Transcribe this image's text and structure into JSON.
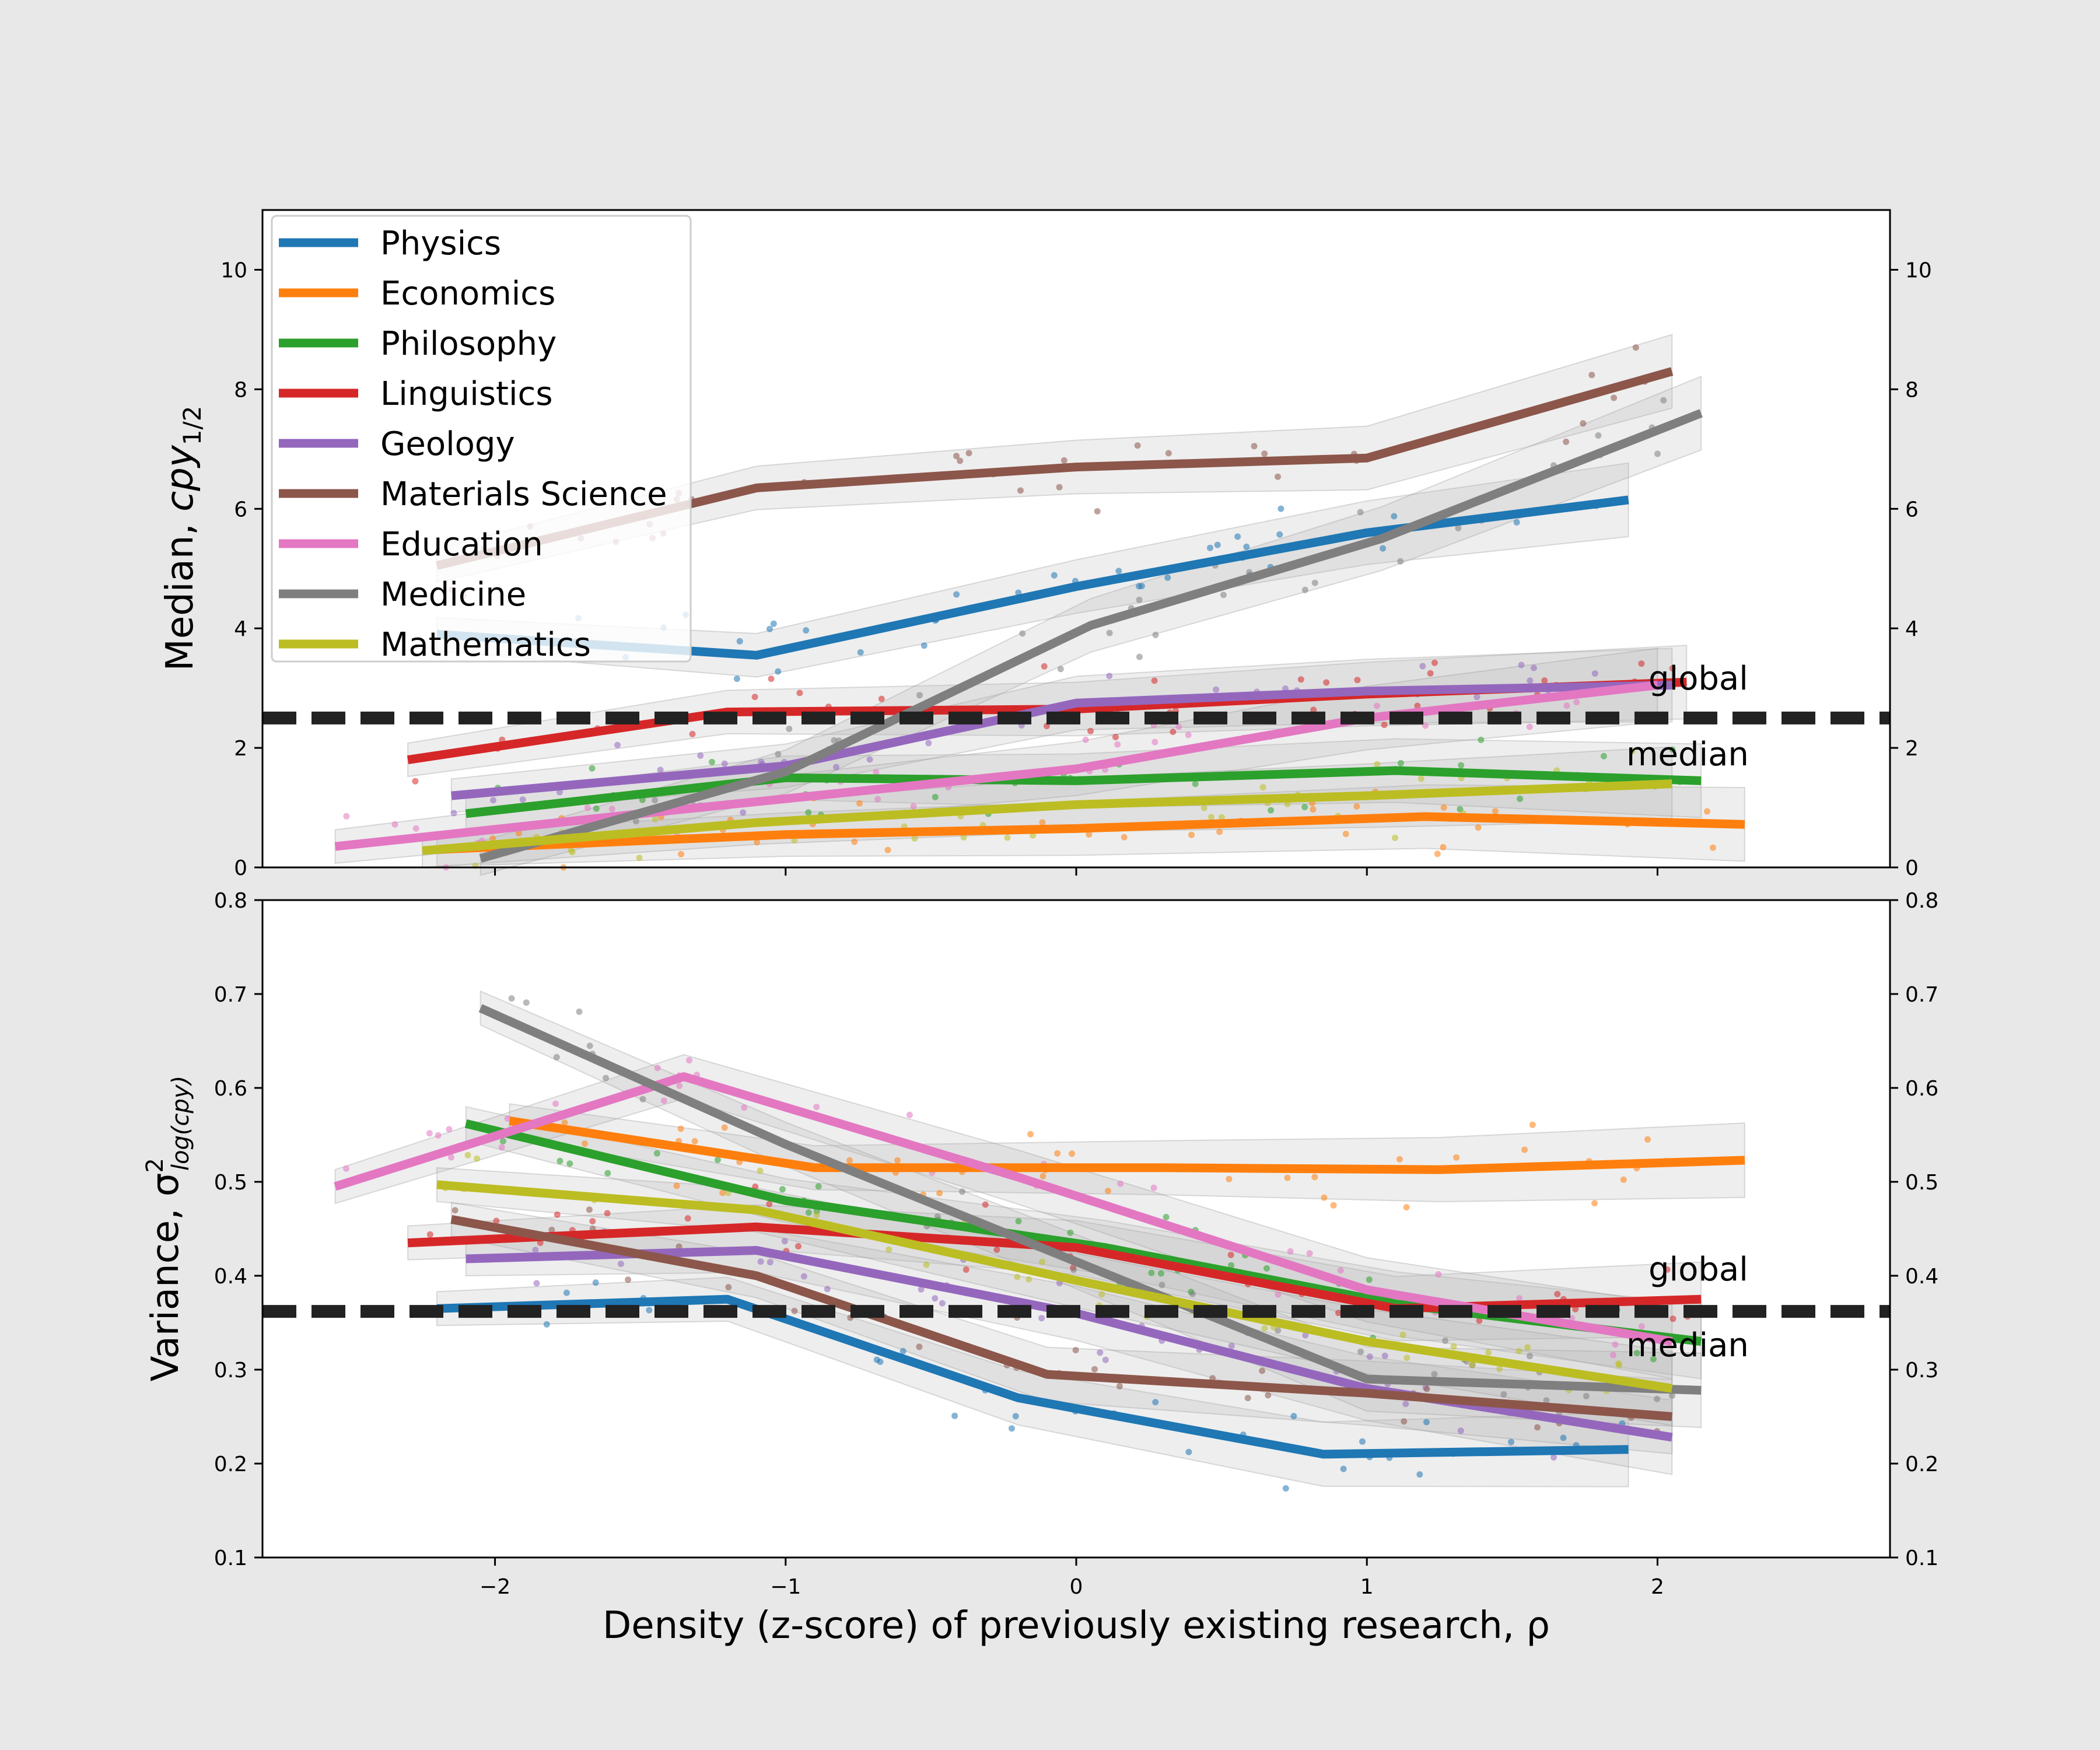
{
  "chart_data": [
    {
      "type": "line",
      "panel": "top",
      "ylabel": "Median, cpy1/2",
      "xlabel": "",
      "xlim": [
        -2.8,
        2.8
      ],
      "ylim": [
        0,
        11
      ],
      "yticks": [
        0,
        2,
        4,
        6,
        8,
        10
      ],
      "xticks": [
        -2,
        -1,
        0,
        1,
        2
      ],
      "legend_placement": "top-left",
      "grid": false,
      "reference_line": {
        "y": 2.5,
        "style": "dashed",
        "color": "#222222"
      },
      "annotations": [
        "global",
        "median"
      ],
      "series": [
        {
          "name": "Physics",
          "color": "#1f77b4",
          "x": [
            -2.2,
            -1.1,
            0,
            1.0,
            1.9
          ],
          "y": [
            3.9,
            3.55,
            4.7,
            5.6,
            6.15
          ]
        },
        {
          "name": "Economics",
          "color": "#ff7f0e",
          "x": [
            -2.2,
            -1.0,
            0,
            1.2,
            2.3
          ],
          "y": [
            0.3,
            0.55,
            0.65,
            0.85,
            0.72
          ]
        },
        {
          "name": "Philosophy",
          "color": "#2ca02c",
          "x": [
            -2.1,
            -1.0,
            0,
            1.1,
            2.15
          ],
          "y": [
            0.9,
            1.5,
            1.45,
            1.62,
            1.45
          ]
        },
        {
          "name": "Linguistics",
          "color": "#d62728",
          "x": [
            -2.3,
            -1.2,
            0,
            1.0,
            2.1
          ],
          "y": [
            1.8,
            2.6,
            2.65,
            2.9,
            3.1
          ]
        },
        {
          "name": "Geology",
          "color": "#9467bd",
          "x": [
            -2.15,
            -1.0,
            0,
            1.0,
            2.05
          ],
          "y": [
            1.2,
            1.7,
            2.75,
            2.95,
            3.05
          ]
        },
        {
          "name": "Materials Science",
          "color": "#8c564b",
          "x": [
            -2.2,
            -1.1,
            0,
            1.0,
            2.05
          ],
          "y": [
            5.05,
            6.35,
            6.7,
            6.85,
            8.3
          ]
        },
        {
          "name": "Education",
          "color": "#e377c2",
          "x": [
            -2.55,
            -1.4,
            0,
            1.0,
            2.0
          ],
          "y": [
            0.35,
            0.95,
            1.65,
            2.5,
            3.05
          ]
        },
        {
          "name": "Medicine",
          "color": "#7f7f7f",
          "x": [
            -2.05,
            -1.0,
            0.05,
            1.05,
            2.15
          ],
          "y": [
            0.15,
            1.6,
            4.05,
            5.5,
            7.6
          ]
        },
        {
          "name": "Mathematics",
          "color": "#bcbd22",
          "x": [
            -2.25,
            -1.1,
            0,
            1.0,
            2.05
          ],
          "y": [
            0.28,
            0.75,
            1.05,
            1.2,
            1.4
          ]
        }
      ]
    },
    {
      "type": "line",
      "panel": "bottom",
      "ylabel": "Variance, σ²log(cpy)",
      "xlabel": "Density (z-score) of previously existing research, ρ",
      "xlim": [
        -2.8,
        2.8
      ],
      "ylim": [
        0.1,
        0.8
      ],
      "yticks": [
        0.1,
        0.2,
        0.3,
        0.4,
        0.5,
        0.6,
        0.7,
        0.8
      ],
      "xticks": [
        -2,
        -1,
        0,
        1,
        2
      ],
      "grid": false,
      "reference_line": {
        "y": 0.362,
        "style": "dashed",
        "color": "#222222"
      },
      "annotations": [
        "global",
        "median"
      ],
      "series": [
        {
          "name": "Physics",
          "color": "#1f77b4",
          "x": [
            -2.2,
            -1.2,
            -0.2,
            0.85,
            1.9
          ],
          "y": [
            0.365,
            0.375,
            0.27,
            0.21,
            0.215
          ]
        },
        {
          "name": "Economics",
          "color": "#ff7f0e",
          "x": [
            -1.95,
            -0.9,
            0.3,
            1.25,
            2.3
          ],
          "y": [
            0.565,
            0.515,
            0.515,
            0.513,
            0.523
          ]
        },
        {
          "name": "Philosophy",
          "color": "#2ca02c",
          "x": [
            -2.1,
            -1.0,
            0.1,
            1.1,
            2.15
          ],
          "y": [
            0.562,
            0.48,
            0.43,
            0.37,
            0.33
          ]
        },
        {
          "name": "Linguistics",
          "color": "#d62728",
          "x": [
            -2.3,
            -1.1,
            0,
            1.1,
            2.15
          ],
          "y": [
            0.435,
            0.452,
            0.43,
            0.365,
            0.375
          ]
        },
        {
          "name": "Geology",
          "color": "#9467bd",
          "x": [
            -2.1,
            -1.1,
            0,
            1.0,
            2.05
          ],
          "y": [
            0.418,
            0.427,
            0.36,
            0.28,
            0.228
          ]
        },
        {
          "name": "Materials Science",
          "color": "#8c564b",
          "x": [
            -2.15,
            -1.1,
            -0.1,
            1.0,
            2.05
          ],
          "y": [
            0.46,
            0.4,
            0.295,
            0.275,
            0.25
          ]
        },
        {
          "name": "Education",
          "color": "#e377c2",
          "x": [
            -2.55,
            -1.35,
            -0.2,
            1.0,
            2.05
          ],
          "y": [
            0.495,
            0.612,
            0.505,
            0.385,
            0.33
          ]
        },
        {
          "name": "Medicine",
          "color": "#7f7f7f",
          "x": [
            -2.05,
            -1.0,
            0,
            1.0,
            2.15
          ],
          "y": [
            0.685,
            0.54,
            0.415,
            0.29,
            0.278
          ]
        },
        {
          "name": "Mathematics",
          "color": "#bcbd22",
          "x": [
            -2.2,
            -1.1,
            0,
            1.0,
            2.05
          ],
          "y": [
            0.497,
            0.47,
            0.395,
            0.33,
            0.28
          ]
        }
      ]
    }
  ],
  "legend": [
    {
      "label": "Physics",
      "color": "#1f77b4"
    },
    {
      "label": "Economics",
      "color": "#ff7f0e"
    },
    {
      "label": "Philosophy",
      "color": "#2ca02c"
    },
    {
      "label": "Linguistics",
      "color": "#d62728"
    },
    {
      "label": "Geology",
      "color": "#9467bd"
    },
    {
      "label": "Materials Science",
      "color": "#8c564b"
    },
    {
      "label": "Education",
      "color": "#e377c2"
    },
    {
      "label": "Medicine",
      "color": "#7f7f7f"
    },
    {
      "label": "Mathematics",
      "color": "#bcbd22"
    }
  ],
  "labels": {
    "top_ylabel_main": "Median, ",
    "top_ylabel_sym": "cpy",
    "top_ylabel_sub": "1/2",
    "bottom_ylabel_main": "Variance, ",
    "bottom_ylabel_sym": "σ",
    "bottom_ylabel_sup": "2",
    "bottom_ylabel_sub": "log(cpy)",
    "xlabel": "Density (z-score) of previously existing research, ρ",
    "annot_global": "global",
    "annot_median": "median"
  }
}
